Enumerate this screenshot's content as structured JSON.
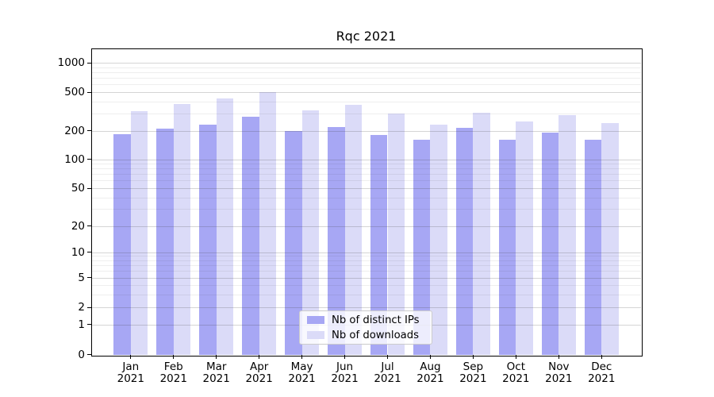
{
  "title": "Rqc 2021",
  "chart_data": {
    "type": "bar",
    "title": "Rqc 2021",
    "categories": [
      "Jan 2021",
      "Feb 2021",
      "Mar 2021",
      "Apr 2021",
      "May 2021",
      "Jun 2021",
      "Jul 2021",
      "Aug 2021",
      "Sep 2021",
      "Oct 2021",
      "Nov 2021",
      "Dec 2021"
    ],
    "x_tick_lines": [
      {
        "line1": "Jan",
        "line2": "2021"
      },
      {
        "line1": "Feb",
        "line2": "2021"
      },
      {
        "line1": "Mar",
        "line2": "2021"
      },
      {
        "line1": "Apr",
        "line2": "2021"
      },
      {
        "line1": "May",
        "line2": "2021"
      },
      {
        "line1": "Jun",
        "line2": "2021"
      },
      {
        "line1": "Jul",
        "line2": "2021"
      },
      {
        "line1": "Aug",
        "line2": "2021"
      },
      {
        "line1": "Sep",
        "line2": "2021"
      },
      {
        "line1": "Oct",
        "line2": "2021"
      },
      {
        "line1": "Nov",
        "line2": "2021"
      },
      {
        "line1": "Dec",
        "line2": "2021"
      }
    ],
    "series": [
      {
        "name": "Nb of distinct IPs",
        "color": "#a7a7f4",
        "values": [
          183,
          211,
          232,
          280,
          200,
          219,
          181,
          159,
          215,
          159,
          192,
          161
        ]
      },
      {
        "name": "Nb of downloads",
        "color": "#dbdbf8",
        "values": [
          320,
          380,
          428,
          500,
          322,
          373,
          300,
          231,
          305,
          247,
          288,
          240
        ]
      }
    ],
    "yscale": "symlog",
    "yticks": [
      0,
      1,
      2,
      5,
      10,
      20,
      50,
      100,
      200,
      500,
      1000
    ],
    "ylim": [
      0,
      1400
    ],
    "grid": "on",
    "legend_position": "inside-bottom-center"
  },
  "colors": {
    "series_ips": "#a7a7f4",
    "series_downloads": "#dbdbf8",
    "grid_major": "#d4d4d4",
    "grid_minor": "#eeeeee",
    "frame": "#000000",
    "legend_border": "#cccccc",
    "background": "#ffffff"
  }
}
